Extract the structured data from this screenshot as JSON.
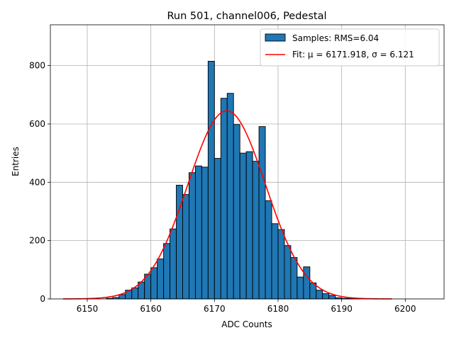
{
  "chart_data": {
    "type": "bar",
    "title": "Run 501, channel006, Pedestal",
    "xlabel": "ADC Counts",
    "ylabel": "Entries",
    "xlim": [
      6144.2,
      6206.1
    ],
    "ylim": [
      0,
      940
    ],
    "x_ticks": [
      6150,
      6160,
      6170,
      6180,
      6190,
      6200
    ],
    "y_ticks": [
      0,
      200,
      400,
      600,
      800
    ],
    "grid": true,
    "legend_position": "top-right",
    "bin_width": 1,
    "histogram": {
      "name": "Samples: RMS=6.04",
      "color": "#1f77b4",
      "edge_color": "#000000",
      "bin_starts": [
        6153,
        6154,
        6155,
        6156,
        6157,
        6158,
        6159,
        6160,
        6161,
        6162,
        6163,
        6164,
        6165,
        6166,
        6167,
        6168,
        6169,
        6170,
        6171,
        6172,
        6173,
        6174,
        6175,
        6176,
        6177,
        6178,
        6179,
        6180,
        6181,
        6182,
        6183,
        6184,
        6185,
        6186,
        6187,
        6188,
        6189,
        6190,
        6191,
        6192
      ],
      "values": [
        2,
        5,
        15,
        30,
        38,
        58,
        85,
        107,
        137,
        190,
        240,
        390,
        358,
        433,
        456,
        452,
        815,
        482,
        688,
        705,
        598,
        500,
        505,
        472,
        591,
        337,
        258,
        238,
        183,
        142,
        75,
        110,
        55,
        30,
        18,
        12,
        4,
        2,
        2,
        1
      ]
    },
    "fit": {
      "name": "Fit: μ = 6171.918, σ = 6.121",
      "color": "#ff0000",
      "mu": 6171.918,
      "sigma": 6.121,
      "amplitude": 645,
      "x_range": [
        6146.2,
        6197.9
      ]
    },
    "legend": [
      {
        "label": "Samples: RMS=6.04",
        "kind": "patch",
        "color": "#1f77b4"
      },
      {
        "label": "Fit: μ = 6171.918, σ = 6.121",
        "kind": "line",
        "color": "#ff0000"
      }
    ]
  }
}
